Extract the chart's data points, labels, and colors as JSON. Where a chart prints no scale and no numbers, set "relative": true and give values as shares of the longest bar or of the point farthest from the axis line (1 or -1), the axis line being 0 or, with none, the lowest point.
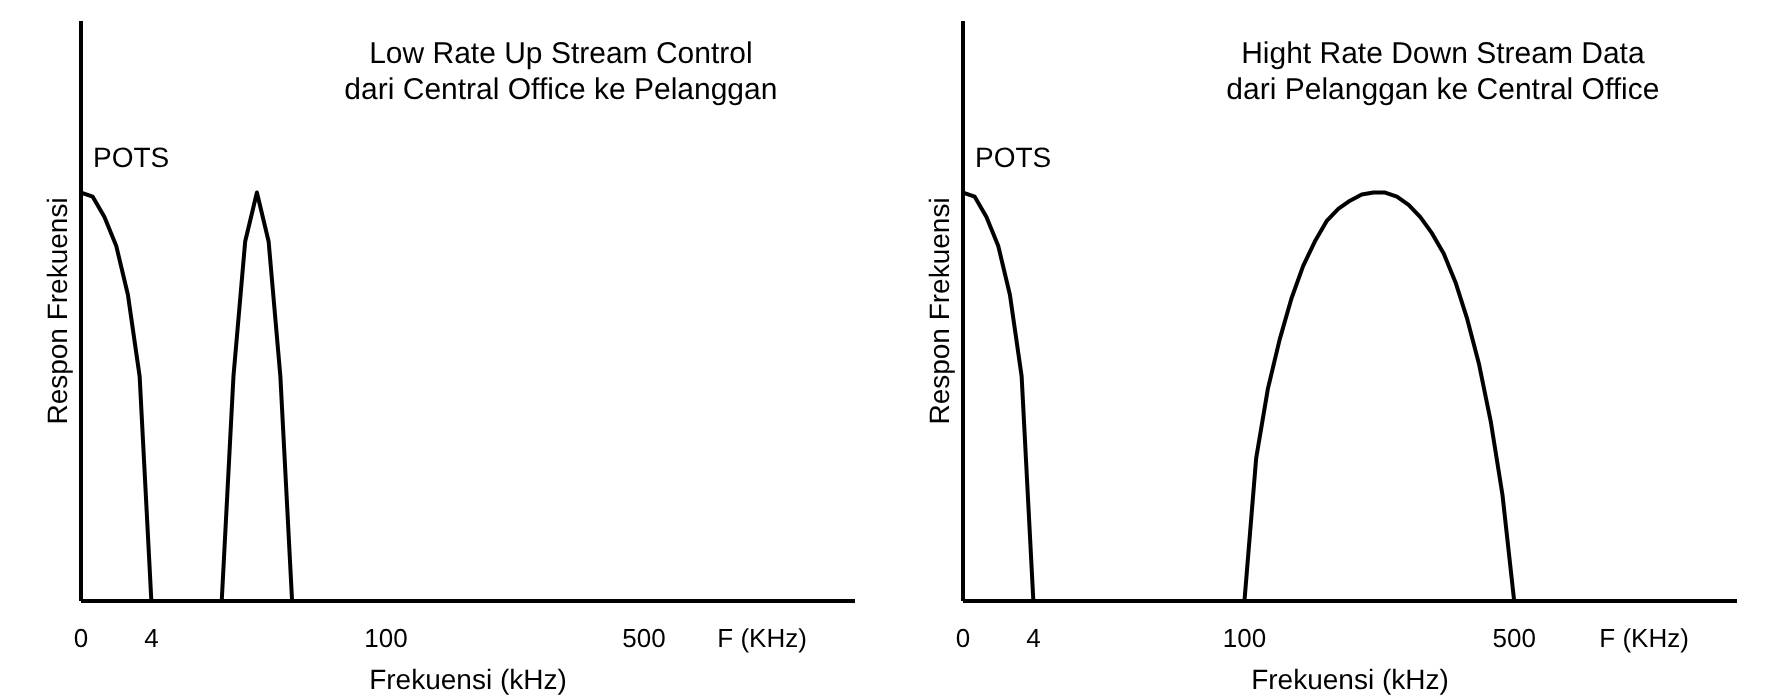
{
  "chart_data": [
    {
      "type": "line",
      "title": "Low Rate Up Stream Control\ndari Central Office ke Pelanggan",
      "xlabel": "Frekuensi (kHz)",
      "ylabel": "Respon Frekuensi",
      "relative": true,
      "annotations": [
        "F (KHz)"
      ],
      "marker": "none",
      "line_style": "solid",
      "categories": [
        "0",
        null,
        null,
        null,
        null,
        null,
        "4",
        null,
        null,
        null,
        null,
        null,
        null,
        null,
        null,
        null,
        null,
        null,
        null,
        null,
        null,
        null,
        null,
        null,
        null,
        null,
        "100",
        null,
        null,
        null,
        null,
        null,
        null,
        null,
        null,
        null,
        null,
        null,
        null,
        null,
        null,
        null,
        null,
        null,
        null,
        null,
        null,
        null,
        "500",
        null,
        null,
        null,
        null,
        null,
        null,
        null,
        null,
        null,
        null,
        null,
        null,
        null,
        null,
        null,
        null,
        null,
        null
      ],
      "series": [
        {
          "name": "POTS",
          "color": "#000000",
          "values": [
            1,
            0.99,
            0.94,
            0.87,
            0.75,
            0.55,
            0,
            null,
            null,
            null,
            null,
            null,
            null,
            null,
            null,
            null,
            null,
            null,
            null,
            null,
            null,
            null,
            null,
            null,
            null,
            null,
            null,
            null,
            null,
            null,
            null,
            null,
            null,
            null,
            null,
            null,
            null,
            null,
            null,
            null,
            null,
            null,
            null,
            null,
            null,
            null,
            null,
            null,
            null,
            null,
            null,
            null,
            null,
            null,
            null,
            null,
            null,
            null,
            null,
            null,
            null,
            null,
            null,
            null,
            null,
            null,
            null
          ]
        },
        {
          "color": "#000000",
          "values": [
            null,
            null,
            null,
            null,
            null,
            null,
            null,
            null,
            null,
            null,
            null,
            null,
            0,
            0.55,
            0.88,
            1,
            0.88,
            0.55,
            0,
            null,
            null,
            null,
            null,
            null,
            null,
            null,
            null,
            null,
            null,
            null,
            null,
            null,
            null,
            null,
            null,
            null,
            null,
            null,
            null,
            null,
            null,
            null,
            null,
            null,
            null,
            null,
            null,
            null,
            null,
            null,
            null,
            null,
            null,
            null,
            null,
            null,
            null,
            null,
            null,
            null,
            null,
            null,
            null,
            null,
            null,
            null,
            null
          ]
        }
      ]
    },
    {
      "type": "line",
      "title": "Hight Rate Down Stream Data\ndari Pelanggan ke Central Office",
      "xlabel": "Frekuensi (kHz)",
      "ylabel": "Respon Frekuensi",
      "relative": true,
      "annotations": [
        "F (KHz)"
      ],
      "marker": "none",
      "line_style": "solid",
      "categories": [
        "0",
        null,
        null,
        null,
        null,
        null,
        "4",
        null,
        null,
        null,
        null,
        null,
        null,
        null,
        null,
        null,
        null,
        null,
        null,
        null,
        null,
        null,
        null,
        null,
        "100",
        null,
        null,
        null,
        null,
        null,
        null,
        null,
        null,
        null,
        null,
        null,
        null,
        null,
        null,
        null,
        null,
        null,
        null,
        null,
        null,
        null,
        null,
        "500",
        null,
        null,
        null,
        null,
        null,
        null,
        null,
        null,
        null,
        null,
        null,
        null,
        null,
        null,
        null,
        null,
        null,
        null,
        null
      ],
      "series": [
        {
          "name": "POTS",
          "color": "#000000",
          "values": [
            1,
            0.99,
            0.94,
            0.87,
            0.75,
            0.55,
            0,
            null,
            null,
            null,
            null,
            null,
            null,
            null,
            null,
            null,
            null,
            null,
            null,
            null,
            null,
            null,
            null,
            null,
            null,
            null,
            null,
            null,
            null,
            null,
            null,
            null,
            null,
            null,
            null,
            null,
            null,
            null,
            null,
            null,
            null,
            null,
            null,
            null,
            null,
            null,
            null,
            null,
            null,
            null,
            null,
            null,
            null,
            null,
            null,
            null,
            null,
            null,
            null,
            null,
            null,
            null,
            null,
            null,
            null,
            null,
            null
          ]
        },
        {
          "color": "#000000",
          "values": [
            null,
            null,
            null,
            null,
            null,
            null,
            null,
            null,
            null,
            null,
            null,
            null,
            null,
            null,
            null,
            null,
            null,
            null,
            null,
            null,
            null,
            null,
            null,
            null,
            0,
            0.35,
            0.52,
            0.64,
            0.74,
            0.82,
            0.88,
            0.93,
            0.96,
            0.98,
            0.995,
            1,
            1,
            0.99,
            0.97,
            0.94,
            0.9,
            0.85,
            0.78,
            0.69,
            0.58,
            0.44,
            0.26,
            0,
            null,
            null,
            null,
            null,
            null,
            null,
            null,
            null,
            null,
            null,
            null,
            null,
            null,
            null,
            null,
            null,
            null,
            null,
            null
          ]
        }
      ]
    }
  ]
}
